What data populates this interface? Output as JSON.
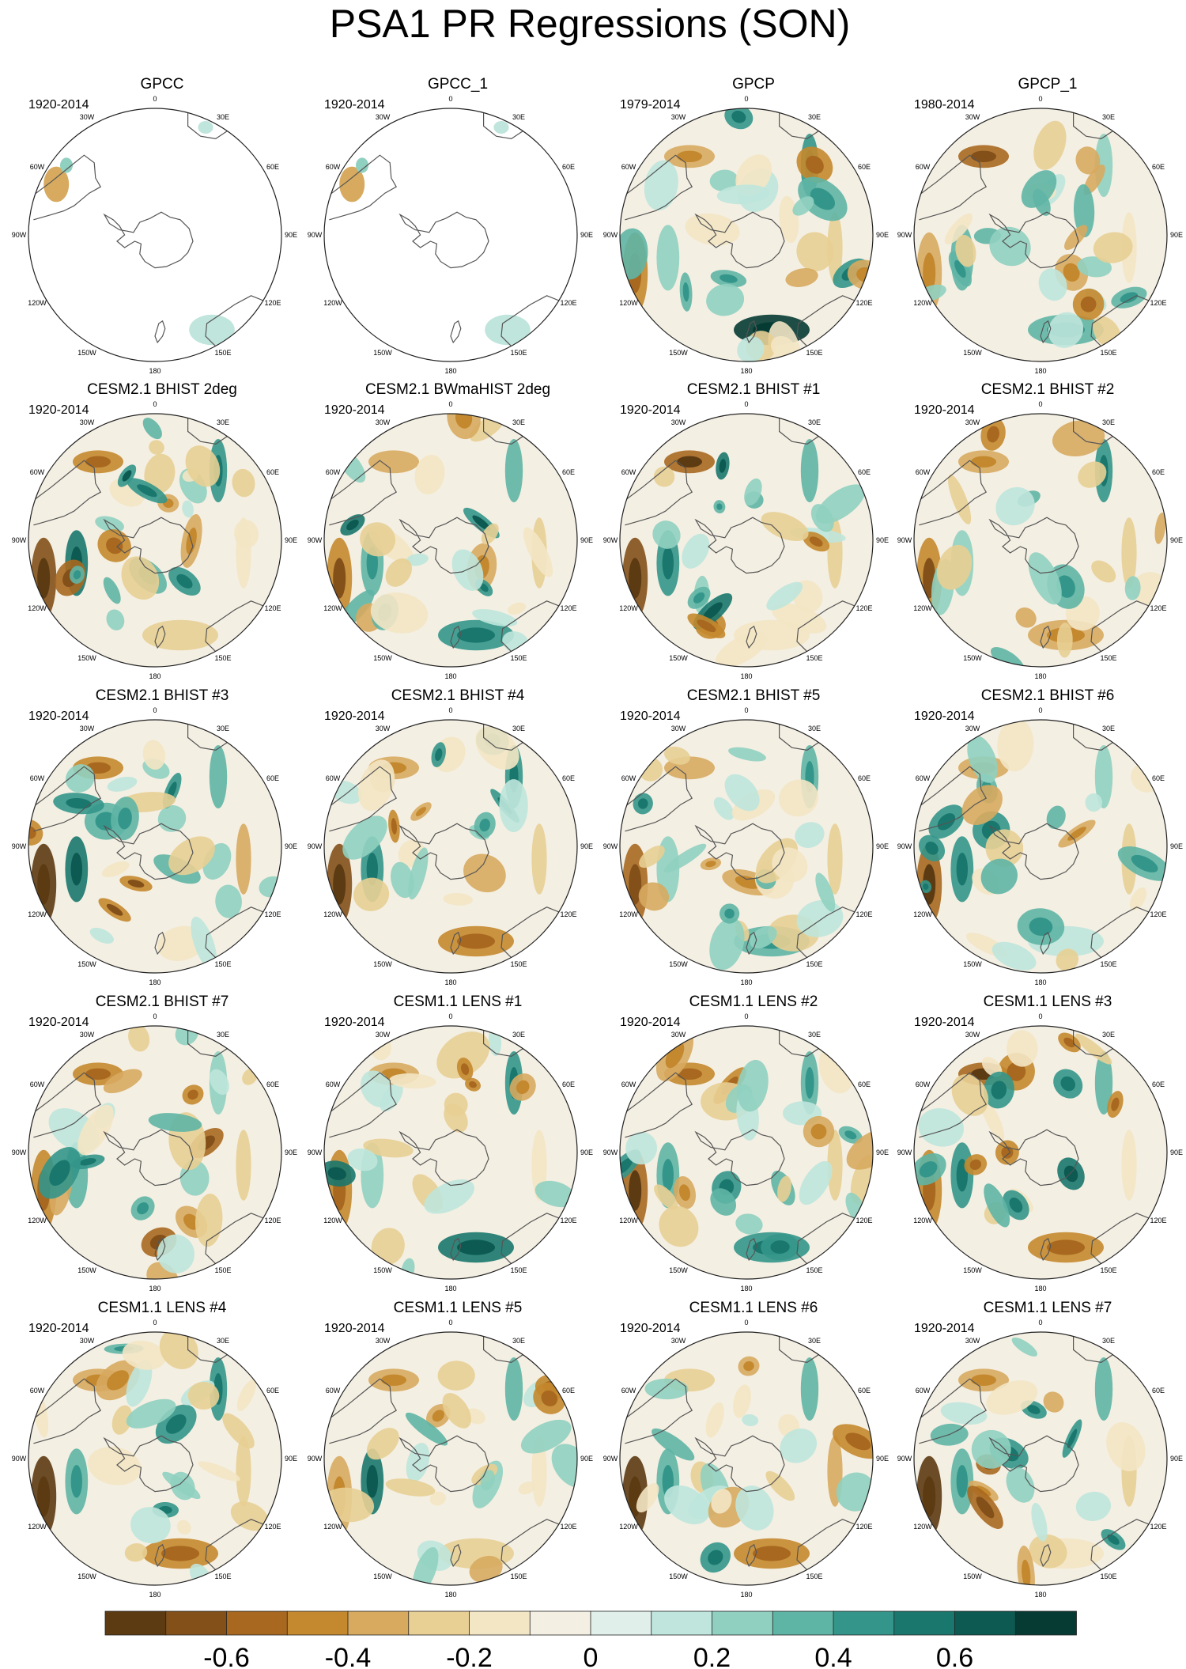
{
  "title": "PSA1 PR Regressions (SON)",
  "longitude_labels": [
    "0",
    "30E",
    "60E",
    "90E",
    "120E",
    "150E",
    "180",
    "150W",
    "120W",
    "90W",
    "60W",
    "30W"
  ],
  "chart_data": {
    "type": "heatmap",
    "projection": "south-polar-stereographic",
    "panels": [
      {
        "name": "GPCC",
        "years": "1920-2014",
        "coverage": "land"
      },
      {
        "name": "GPCC_1",
        "years": "1920-2014",
        "coverage": "land"
      },
      {
        "name": "GPCP",
        "years": "1979-2014",
        "coverage": "full"
      },
      {
        "name": "GPCP_1",
        "years": "1980-2014",
        "coverage": "full"
      },
      {
        "name": "CESM2.1 BHIST 2deg",
        "years": "1920-2014",
        "coverage": "full"
      },
      {
        "name": "CESM2.1 BWmaHIST 2deg",
        "years": "1920-2014",
        "coverage": "full"
      },
      {
        "name": "CESM2.1 BHIST #1",
        "years": "1920-2014",
        "coverage": "full"
      },
      {
        "name": "CESM2.1 BHIST #2",
        "years": "1920-2014",
        "coverage": "full"
      },
      {
        "name": "CESM2.1 BHIST #3",
        "years": "1920-2014",
        "coverage": "full"
      },
      {
        "name": "CESM2.1 BHIST #4",
        "years": "1920-2014",
        "coverage": "full"
      },
      {
        "name": "CESM2.1 BHIST #5",
        "years": "1920-2014",
        "coverage": "full"
      },
      {
        "name": "CESM2.1 BHIST #6",
        "years": "1920-2014",
        "coverage": "full"
      },
      {
        "name": "CESM2.1 BHIST #7",
        "years": "1920-2014",
        "coverage": "full"
      },
      {
        "name": "CESM1.1 LENS #1",
        "years": "1920-2014",
        "coverage": "full"
      },
      {
        "name": "CESM1.1 LENS #2",
        "years": "1920-2014",
        "coverage": "full"
      },
      {
        "name": "CESM1.1 LENS #3",
        "years": "1920-2014",
        "coverage": "full"
      },
      {
        "name": "CESM1.1 LENS #4",
        "years": "1920-2014",
        "coverage": "full"
      },
      {
        "name": "CESM1.1 LENS #5",
        "years": "1920-2014",
        "coverage": "full"
      },
      {
        "name": "CESM1.1 LENS #6",
        "years": "1920-2014",
        "coverage": "full"
      },
      {
        "name": "CESM1.1 LENS #7",
        "years": "1920-2014",
        "coverage": "full"
      }
    ],
    "colorbar": {
      "levels": [
        -0.7,
        -0.6,
        -0.5,
        -0.4,
        -0.3,
        -0.2,
        -0.1,
        0,
        0.1,
        0.2,
        0.3,
        0.4,
        0.5,
        0.6,
        0.7
      ],
      "tick_values": [
        -0.6,
        -0.4,
        -0.2,
        0,
        0.2,
        0.4,
        0.6
      ],
      "tick_labels": [
        "-0.6",
        "-0.4",
        "-0.2",
        "0",
        "0.2",
        "0.4",
        "0.6"
      ],
      "colors": [
        "#5c3a12",
        "#83501a",
        "#a8681f",
        "#c4882e",
        "#d7aa5f",
        "#e8cf94",
        "#f3e6c4",
        "#f4efe3",
        "#e1efeb",
        "#bfe5dc",
        "#90d0c0",
        "#5fb5a5",
        "#34968a",
        "#1a776d",
        "#0c5a51",
        "#063b33"
      ]
    }
  }
}
